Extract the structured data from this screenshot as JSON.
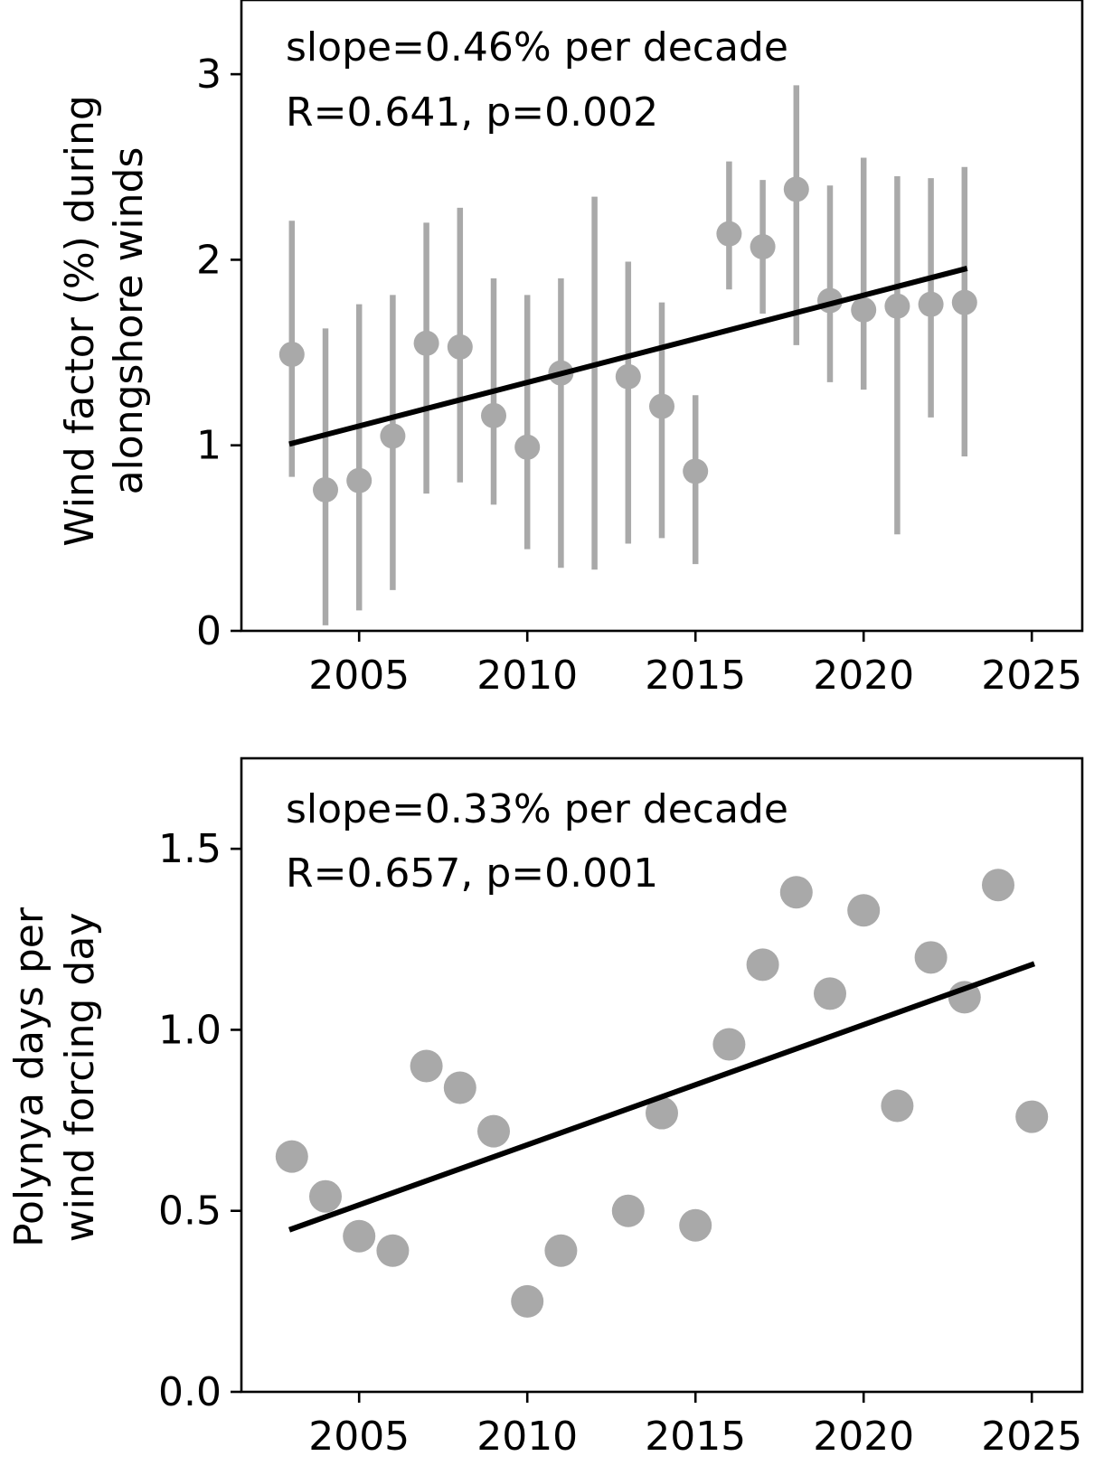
{
  "colors": {
    "points": "#a9a9a9",
    "trend": "#000000",
    "axes": "#000000"
  },
  "chart_data": [
    {
      "type": "scatter",
      "error_bars": true,
      "ylabel_lines": [
        "Wind factor (%) during",
        "alongshore winds"
      ],
      "xlabel": "",
      "xlim": [
        2001.5,
        2026.5
      ],
      "ylim": [
        0,
        3.4
      ],
      "xticks": [
        2005,
        2010,
        2015,
        2020,
        2025
      ],
      "yticks": [
        0,
        1,
        2,
        3
      ],
      "ytick_labels": [
        "0",
        "1",
        "2",
        "3"
      ],
      "annotation_lines": [
        "slope=0.46% per decade",
        "R=0.641, p=0.002"
      ],
      "series": [
        {
          "x": [
            2003,
            2004,
            2005,
            2006,
            2007,
            2008,
            2009,
            2010,
            2011,
            2013,
            2014,
            2015,
            2016,
            2017,
            2018,
            2019,
            2020,
            2021,
            2022,
            2023
          ],
          "y": [
            1.49,
            0.76,
            0.81,
            1.05,
            1.55,
            1.53,
            1.16,
            0.99,
            1.39,
            1.37,
            1.21,
            0.86,
            2.14,
            2.07,
            2.38,
            1.78,
            1.73,
            1.75,
            1.76,
            1.77
          ],
          "yerr_low": [
            0.83,
            0.03,
            0.11,
            0.22,
            0.74,
            0.8,
            0.68,
            0.44,
            0.34,
            0.47,
            0.5,
            0.36,
            1.84,
            1.71,
            1.54,
            1.34,
            1.3,
            0.52,
            1.15,
            0.94
          ],
          "yerr_high": [
            2.21,
            1.63,
            1.76,
            1.81,
            2.2,
            2.28,
            1.9,
            1.81,
            1.9,
            1.99,
            1.77,
            1.27,
            2.53,
            2.43,
            2.94,
            2.4,
            2.55,
            2.45,
            2.44,
            2.5
          ]
        }
      ],
      "error_only": [
        {
          "x": 2012,
          "low": 0.33,
          "high": 2.34
        }
      ],
      "trend_line": {
        "x": [
          2003,
          2023
        ],
        "y": [
          1.01,
          1.95
        ]
      }
    },
    {
      "type": "scatter",
      "ylabel_lines": [
        "Polynya days per",
        "wind forcing day"
      ],
      "xlabel": "",
      "xlim": [
        2001.5,
        2026.5
      ],
      "ylim": [
        0,
        1.75
      ],
      "xticks": [
        2005,
        2010,
        2015,
        2020,
        2025
      ],
      "yticks": [
        0,
        0.5,
        1.0,
        1.5
      ],
      "ytick_labels": [
        "0.0",
        "0.5",
        "1.0",
        "1.5"
      ],
      "annotation_lines": [
        "slope=0.33% per decade",
        "R=0.657, p=0.001"
      ],
      "series": [
        {
          "x": [
            2003,
            2004,
            2005,
            2006,
            2007,
            2008,
            2009,
            2010,
            2011,
            2013,
            2014,
            2015,
            2016,
            2017,
            2018,
            2019,
            2020,
            2021,
            2022,
            2023,
            2024,
            2025
          ],
          "y": [
            0.65,
            0.54,
            0.43,
            0.39,
            0.9,
            0.84,
            0.72,
            0.25,
            0.39,
            0.5,
            0.77,
            0.46,
            0.96,
            1.18,
            1.38,
            1.1,
            1.33,
            0.79,
            1.2,
            1.09,
            1.4,
            0.76
          ]
        }
      ],
      "trend_line": {
        "x": [
          2003,
          2025
        ],
        "y": [
          0.45,
          1.18
        ]
      }
    }
  ]
}
